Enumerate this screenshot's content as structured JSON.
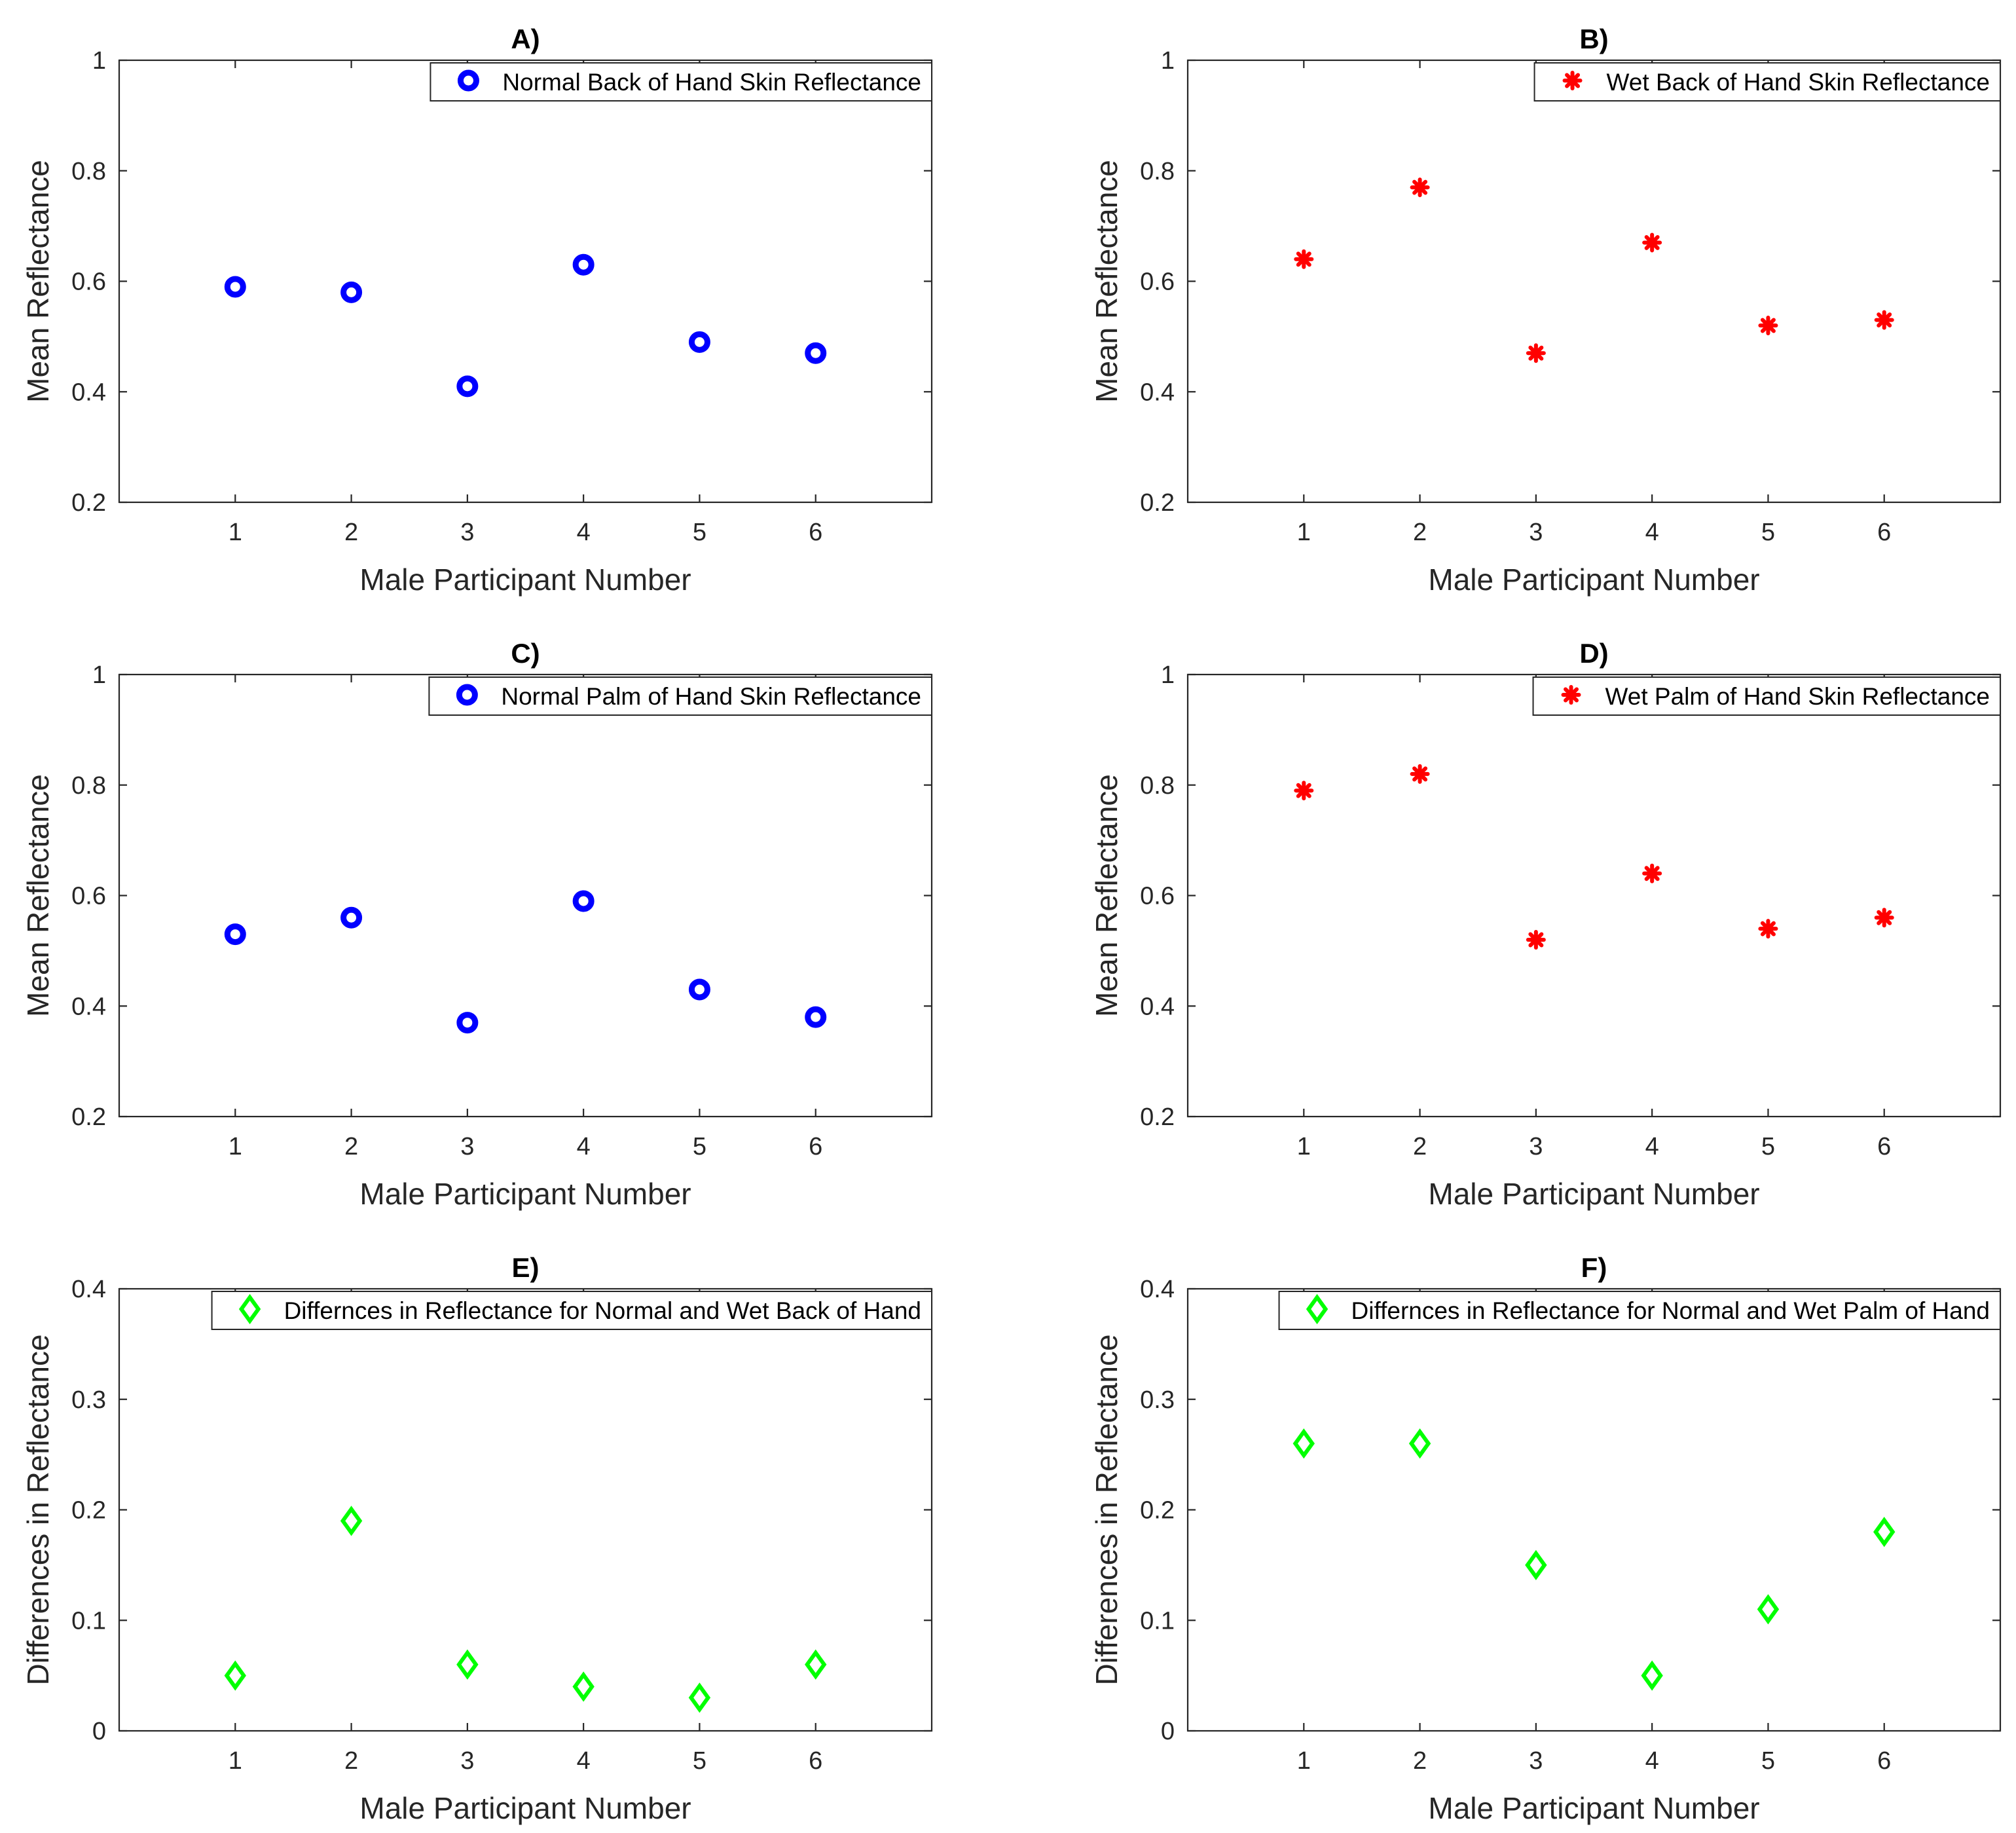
{
  "chart_data": [
    {
      "id": "A",
      "type": "scatter",
      "title": "A)",
      "xlabel": "Male Participant Number",
      "ylabel": "Mean Reflectance",
      "xlim": [
        0,
        7
      ],
      "ylim": [
        0.2,
        1
      ],
      "xticks": [
        1,
        2,
        3,
        4,
        5,
        6
      ],
      "yticks": [
        "0.2",
        "0.4",
        "0.6",
        "0.8",
        "1"
      ],
      "legend_position": "top-right",
      "series": [
        {
          "name": "Normal Back of Hand Skin Reflectance",
          "marker": "circle",
          "color": "#0000ff",
          "x": [
            1,
            2,
            3,
            4,
            5,
            6
          ],
          "y": [
            0.59,
            0.58,
            0.41,
            0.63,
            0.49,
            0.47
          ]
        }
      ]
    },
    {
      "id": "B",
      "type": "scatter",
      "title": "B)",
      "xlabel": "Male Participant Number",
      "ylabel": "Mean Reflectance",
      "xlim": [
        0,
        7
      ],
      "ylim": [
        0.2,
        1
      ],
      "xticks": [
        1,
        2,
        3,
        4,
        5,
        6
      ],
      "yticks": [
        "0.2",
        "0.4",
        "0.6",
        "0.8",
        "1"
      ],
      "legend_position": "top-right",
      "series": [
        {
          "name": "Wet Back of Hand Skin Reflectance",
          "marker": "asterisk",
          "color": "#ff0000",
          "x": [
            1,
            2,
            3,
            4,
            5,
            6
          ],
          "y": [
            0.64,
            0.77,
            0.47,
            0.67,
            0.52,
            0.53
          ]
        }
      ]
    },
    {
      "id": "C",
      "type": "scatter",
      "title": "C)",
      "xlabel": "Male Participant Number",
      "ylabel": "Mean Reflectance",
      "xlim": [
        0,
        7
      ],
      "ylim": [
        0.2,
        1
      ],
      "xticks": [
        1,
        2,
        3,
        4,
        5,
        6
      ],
      "yticks": [
        "0.2",
        "0.4",
        "0.6",
        "0.8",
        "1"
      ],
      "legend_position": "top-right",
      "series": [
        {
          "name": "Normal Palm of Hand Skin Reflectance",
          "marker": "circle",
          "color": "#0000ff",
          "x": [
            1,
            2,
            3,
            4,
            5,
            6
          ],
          "y": [
            0.53,
            0.56,
            0.37,
            0.59,
            0.43,
            0.38
          ]
        }
      ]
    },
    {
      "id": "D",
      "type": "scatter",
      "title": "D)",
      "xlabel": "Male Participant Number",
      "ylabel": "Mean Reflectance",
      "xlim": [
        0,
        7
      ],
      "ylim": [
        0.2,
        1
      ],
      "xticks": [
        1,
        2,
        3,
        4,
        5,
        6
      ],
      "yticks": [
        "0.2",
        "0.4",
        "0.6",
        "0.8",
        "1"
      ],
      "legend_position": "top-right",
      "series": [
        {
          "name": "Wet Palm of Hand Skin Reflectance",
          "marker": "asterisk",
          "color": "#ff0000",
          "x": [
            1,
            2,
            3,
            4,
            5,
            6
          ],
          "y": [
            0.79,
            0.82,
            0.52,
            0.64,
            0.54,
            0.56
          ]
        }
      ]
    },
    {
      "id": "E",
      "type": "scatter",
      "title": "E)",
      "xlabel": "Male Participant Number",
      "ylabel": "Differences in Reflectance",
      "xlim": [
        0,
        7
      ],
      "ylim": [
        0,
        0.4
      ],
      "xticks": [
        1,
        2,
        3,
        4,
        5,
        6
      ],
      "yticks": [
        "0",
        "0.1",
        "0.2",
        "0.3",
        "0.4"
      ],
      "legend_position": "top-right",
      "series": [
        {
          "name": "Differnces in Reflectance for Normal and Wet Back of Hand",
          "marker": "diamond",
          "color": "#00ff00",
          "x": [
            1,
            2,
            3,
            4,
            5,
            6
          ],
          "y": [
            0.05,
            0.19,
            0.06,
            0.04,
            0.03,
            0.06
          ]
        }
      ]
    },
    {
      "id": "F",
      "type": "scatter",
      "title": "F)",
      "xlabel": "Male Participant Number",
      "ylabel": "Differences in Reflectance",
      "xlim": [
        0,
        7
      ],
      "ylim": [
        0,
        0.4
      ],
      "xticks": [
        1,
        2,
        3,
        4,
        5,
        6
      ],
      "yticks": [
        "0",
        "0.1",
        "0.2",
        "0.3",
        "0.4"
      ],
      "legend_position": "top-right",
      "series": [
        {
          "name": "Differnces in Reflectance for Normal and Wet Palm of Hand",
          "marker": "diamond",
          "color": "#00ff00",
          "x": [
            1,
            2,
            3,
            4,
            5,
            6
          ],
          "y": [
            0.26,
            0.26,
            0.15,
            0.05,
            0.11,
            0.18
          ]
        }
      ]
    }
  ]
}
